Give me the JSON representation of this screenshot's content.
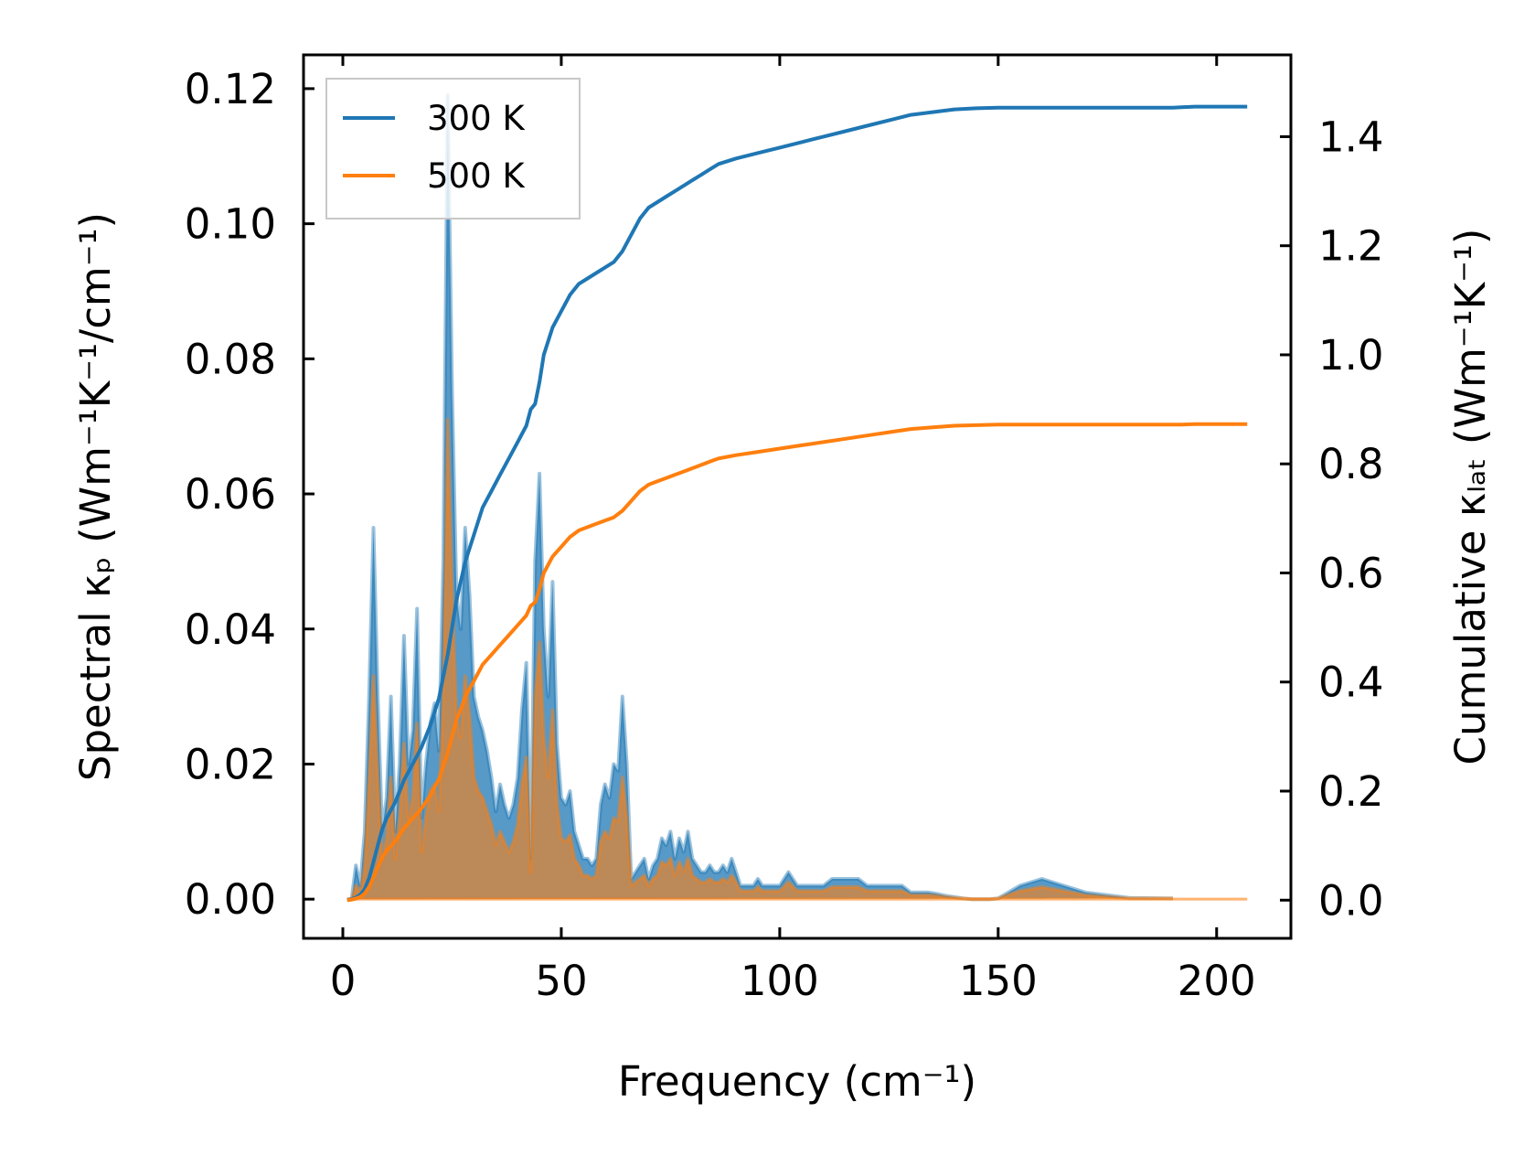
{
  "chart_data": {
    "type": "line",
    "title": "",
    "xlabel": "Frequency (cm⁻¹)",
    "ylabel_left": "Spectral κₚ (Wm⁻¹K⁻¹/cm⁻¹)",
    "ylabel_right": "Cumulative κₗₐₜ (Wm⁻¹K⁻¹)",
    "xlim": [
      -9,
      217
    ],
    "ylim_left": [
      -0.0058,
      0.125
    ],
    "ylim_right": [
      -0.07,
      1.55
    ],
    "xticks": [
      "0",
      "50",
      "100",
      "150",
      "200"
    ],
    "xtick_values": [
      0,
      50,
      100,
      150,
      200
    ],
    "yticks_left": [
      "0.00",
      "0.02",
      "0.04",
      "0.06",
      "0.08",
      "0.10",
      "0.12"
    ],
    "ytick_values_left": [
      0,
      0.02,
      0.04,
      0.06,
      0.08,
      0.1,
      0.12
    ],
    "yticks_right": [
      "0.0",
      "0.2",
      "0.4",
      "0.6",
      "0.8",
      "1.0",
      "1.2",
      "1.4"
    ],
    "ytick_values_right": [
      0,
      0.2,
      0.4,
      0.6,
      0.8,
      1.0,
      1.2,
      1.4
    ],
    "legend": {
      "location": "top-left",
      "entries": [
        "300 K",
        "500 K"
      ]
    },
    "colors": {
      "t300": "#1f77b4",
      "t500": "#ff7f0e",
      "overlap": "#c49a72"
    },
    "spectral_x": [
      1,
      2,
      3,
      4,
      5,
      6,
      7,
      8,
      9,
      10,
      11,
      12,
      13,
      14,
      15,
      16,
      17,
      18,
      19,
      20,
      21,
      22,
      23,
      24,
      25,
      26,
      27,
      28,
      29,
      30,
      31,
      32,
      33,
      34,
      35,
      36,
      37,
      38,
      39,
      40,
      41,
      42,
      43,
      44,
      45,
      46,
      47,
      48,
      49,
      50,
      51,
      52,
      53,
      54,
      55,
      56,
      57,
      58,
      59,
      60,
      61,
      62,
      63,
      64,
      65,
      66,
      67,
      68,
      69,
      70,
      71,
      72,
      73,
      74,
      75,
      76,
      77,
      78,
      79,
      80,
      81,
      82,
      83,
      84,
      85,
      86,
      87,
      88,
      89,
      90,
      91,
      92,
      93,
      94,
      95,
      96,
      97,
      98,
      99,
      100,
      102,
      104,
      106,
      108,
      110,
      112,
      114,
      116,
      118,
      120,
      122,
      124,
      126,
      128,
      130,
      132,
      134,
      136,
      138,
      140,
      142,
      144,
      146,
      148,
      150,
      155,
      160,
      170,
      180,
      190,
      192,
      193,
      194,
      196,
      200,
      207
    ],
    "series": [
      {
        "name": "300 K",
        "spectral": [
          0,
          0,
          0.005,
          0.002,
          0.01,
          0.03,
          0.055,
          0.03,
          0.01,
          0.015,
          0.03,
          0.01,
          0.02,
          0.039,
          0.02,
          0.025,
          0.043,
          0.012,
          0.02,
          0.026,
          0.029,
          0.022,
          0.05,
          0.119,
          0.075,
          0.045,
          0.04,
          0.055,
          0.045,
          0.03,
          0.027,
          0.025,
          0.022,
          0.018,
          0.013,
          0.017,
          0.014,
          0.012,
          0.014,
          0.018,
          0.028,
          0.035,
          0.006,
          0.05,
          0.063,
          0.04,
          0.03,
          0.047,
          0.023,
          0.015,
          0.014,
          0.016,
          0.01,
          0.008,
          0.006,
          0.006,
          0.005,
          0.006,
          0.014,
          0.017,
          0.015,
          0.02,
          0.019,
          0.03,
          0.02,
          0.003,
          0.004,
          0.005,
          0.006,
          0.003,
          0.005,
          0.006,
          0.009,
          0.008,
          0.01,
          0.006,
          0.009,
          0.007,
          0.01,
          0.006,
          0.005,
          0.004,
          0.004,
          0.005,
          0.004,
          0.004,
          0.005,
          0.004,
          0.006,
          0.004,
          0.002,
          0.002,
          0.002,
          0.002,
          0.003,
          0.002,
          0.002,
          0.002,
          0.002,
          0.002,
          0.004,
          0.002,
          0.002,
          0.002,
          0.002,
          0.003,
          0.003,
          0.003,
          0.003,
          0.002,
          0.002,
          0.002,
          0.002,
          0.002,
          0.001,
          0.001,
          0.001,
          0.0008,
          0.0005,
          0.0003,
          0.0001,
          0,
          0,
          0,
          0.0001,
          0.002,
          0.003,
          0.001,
          0.0002,
          0.0001
        ],
        "cumulative_x": [
          1,
          2,
          3,
          4,
          5,
          6,
          7,
          8,
          9,
          10,
          12,
          14,
          16,
          18,
          20,
          22,
          24,
          26,
          28,
          30,
          32,
          34,
          36,
          38,
          40,
          42,
          43,
          44,
          45,
          46,
          48,
          50,
          52,
          54,
          56,
          58,
          60,
          62,
          64,
          66,
          68,
          70,
          72,
          74,
          76,
          78,
          80,
          82,
          84,
          86,
          88,
          90,
          95,
          100,
          105,
          110,
          115,
          120,
          125,
          130,
          135,
          140,
          145,
          150,
          160,
          170,
          180,
          190,
          192,
          195,
          207
        ],
        "cumulative": [
          0,
          0.002,
          0.005,
          0.01,
          0.02,
          0.04,
          0.07,
          0.1,
          0.13,
          0.15,
          0.18,
          0.22,
          0.25,
          0.28,
          0.32,
          0.37,
          0.45,
          0.55,
          0.62,
          0.67,
          0.72,
          0.75,
          0.78,
          0.81,
          0.84,
          0.87,
          0.9,
          0.91,
          0.95,
          1.0,
          1.05,
          1.08,
          1.11,
          1.13,
          1.14,
          1.15,
          1.16,
          1.17,
          1.19,
          1.22,
          1.25,
          1.27,
          1.28,
          1.29,
          1.3,
          1.31,
          1.32,
          1.33,
          1.34,
          1.35,
          1.355,
          1.36,
          1.37,
          1.38,
          1.39,
          1.4,
          1.41,
          1.42,
          1.43,
          1.44,
          1.445,
          1.45,
          1.452,
          1.453,
          1.453,
          1.453,
          1.453,
          1.453,
          1.454,
          1.455,
          1.455
        ]
      },
      {
        "name": "500 K",
        "spectral": [
          0,
          0,
          0.002,
          0.001,
          0.005,
          0.018,
          0.033,
          0.018,
          0.006,
          0.009,
          0.018,
          0.006,
          0.012,
          0.023,
          0.012,
          0.015,
          0.026,
          0.007,
          0.012,
          0.016,
          0.017,
          0.013,
          0.03,
          0.071,
          0.045,
          0.027,
          0.024,
          0.033,
          0.027,
          0.018,
          0.016,
          0.015,
          0.013,
          0.011,
          0.008,
          0.01,
          0.0085,
          0.007,
          0.0085,
          0.011,
          0.017,
          0.021,
          0.004,
          0.03,
          0.038,
          0.024,
          0.018,
          0.028,
          0.014,
          0.009,
          0.0085,
          0.0095,
          0.006,
          0.005,
          0.0035,
          0.0035,
          0.003,
          0.0035,
          0.0085,
          0.01,
          0.009,
          0.012,
          0.0115,
          0.018,
          0.012,
          0.002,
          0.0025,
          0.003,
          0.0035,
          0.002,
          0.003,
          0.0035,
          0.0055,
          0.005,
          0.006,
          0.0035,
          0.0055,
          0.004,
          0.006,
          0.0035,
          0.003,
          0.0025,
          0.0025,
          0.003,
          0.0025,
          0.0025,
          0.003,
          0.0025,
          0.0035,
          0.0025,
          0.0012,
          0.0012,
          0.0012,
          0.0012,
          0.0018,
          0.0012,
          0.0012,
          0.0012,
          0.0012,
          0.0012,
          0.0025,
          0.0012,
          0.0012,
          0.0012,
          0.0012,
          0.0018,
          0.0018,
          0.0018,
          0.0018,
          0.0012,
          0.0012,
          0.0012,
          0.0012,
          0.0012,
          0.0006,
          0.0006,
          0.0006,
          0.0005,
          0.0003,
          0.0002,
          0.0001,
          0,
          0,
          0,
          0.0001,
          0.0012,
          0.0018,
          0.0006,
          0.0001,
          0.0001
        ],
        "cumulative_x": [
          1,
          2,
          3,
          4,
          5,
          6,
          7,
          8,
          9,
          10,
          12,
          14,
          16,
          18,
          20,
          22,
          24,
          26,
          28,
          30,
          32,
          34,
          36,
          38,
          40,
          42,
          43,
          44,
          45,
          46,
          48,
          50,
          52,
          54,
          56,
          58,
          60,
          62,
          64,
          66,
          68,
          70,
          72,
          74,
          76,
          78,
          80,
          82,
          84,
          86,
          88,
          90,
          95,
          100,
          105,
          110,
          115,
          120,
          125,
          130,
          135,
          140,
          145,
          150,
          160,
          170,
          180,
          190,
          192,
          195,
          207
        ],
        "cumulative": [
          0,
          0.001,
          0.003,
          0.006,
          0.012,
          0.024,
          0.042,
          0.06,
          0.078,
          0.09,
          0.108,
          0.132,
          0.15,
          0.168,
          0.192,
          0.222,
          0.27,
          0.33,
          0.372,
          0.402,
          0.432,
          0.45,
          0.468,
          0.486,
          0.504,
          0.522,
          0.54,
          0.546,
          0.57,
          0.6,
          0.63,
          0.648,
          0.666,
          0.678,
          0.684,
          0.69,
          0.696,
          0.702,
          0.714,
          0.732,
          0.75,
          0.762,
          0.768,
          0.774,
          0.78,
          0.786,
          0.792,
          0.798,
          0.804,
          0.81,
          0.813,
          0.816,
          0.822,
          0.828,
          0.834,
          0.84,
          0.846,
          0.852,
          0.858,
          0.864,
          0.867,
          0.87,
          0.871,
          0.872,
          0.872,
          0.872,
          0.872,
          0.872,
          0.872,
          0.873,
          0.873
        ]
      }
    ]
  }
}
